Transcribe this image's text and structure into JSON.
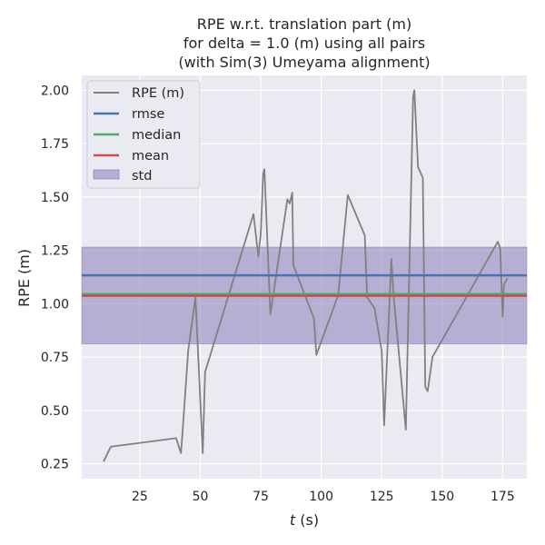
{
  "chart_data": {
    "type": "line",
    "title_lines": [
      "RPE w.r.t. translation part (m)",
      "for delta = 1.0 (m) using all pairs",
      "(with Sim(3) Umeyama alignment)"
    ],
    "xlabel_italic": "t",
    "xlabel_unit": " (s)",
    "ylabel": "RPE (m)",
    "xlim": [
      1,
      185
    ],
    "ylim": [
      0.18,
      2.07
    ],
    "xticks": [
      25,
      50,
      75,
      100,
      125,
      150,
      175
    ],
    "xtick_labels": [
      "25",
      "50",
      "75",
      "100",
      "125",
      "150",
      "175"
    ],
    "yticks": [
      0.25,
      0.5,
      0.75,
      1.0,
      1.25,
      1.5,
      1.75,
      2.0
    ],
    "ytick_labels": [
      "0.25",
      "0.50",
      "0.75",
      "1.00",
      "1.25",
      "1.50",
      "1.75",
      "2.00"
    ],
    "grid": true,
    "legend_position": "top-left",
    "series": [
      {
        "name": "RPE (m)",
        "color": "#808080",
        "x": [
          10,
          13,
          40,
          42,
          42.5,
          45,
          48,
          51,
          52,
          72,
          74,
          75,
          76,
          76.5,
          79,
          86,
          87,
          88,
          88.5,
          97,
          98,
          107,
          111,
          118,
          119,
          122,
          125,
          126,
          129,
          130,
          135,
          138,
          138.5,
          140,
          142,
          143,
          144,
          146,
          173,
          174,
          175,
          175.5,
          177
        ],
        "y": [
          0.26,
          0.33,
          0.37,
          0.3,
          0.37,
          0.78,
          1.03,
          0.3,
          0.68,
          1.42,
          1.22,
          1.33,
          1.61,
          1.63,
          0.95,
          1.49,
          1.47,
          1.52,
          1.18,
          0.93,
          0.76,
          1.04,
          1.51,
          1.32,
          1.03,
          0.98,
          0.78,
          0.43,
          1.21,
          1.03,
          0.41,
          1.97,
          2.0,
          1.64,
          1.59,
          0.61,
          0.59,
          0.75,
          1.29,
          1.26,
          0.94,
          1.09,
          1.12
        ]
      }
    ],
    "stats": [
      {
        "name": "rmse",
        "value": 1.133,
        "color": "#4c72b0"
      },
      {
        "name": "median",
        "value": 1.045,
        "color": "#55a868"
      },
      {
        "name": "mean",
        "value": 1.037,
        "color": "#c44e52"
      }
    ],
    "std": {
      "name": "std",
      "low": 0.812,
      "high": 1.265,
      "color": "#8172b3"
    }
  }
}
